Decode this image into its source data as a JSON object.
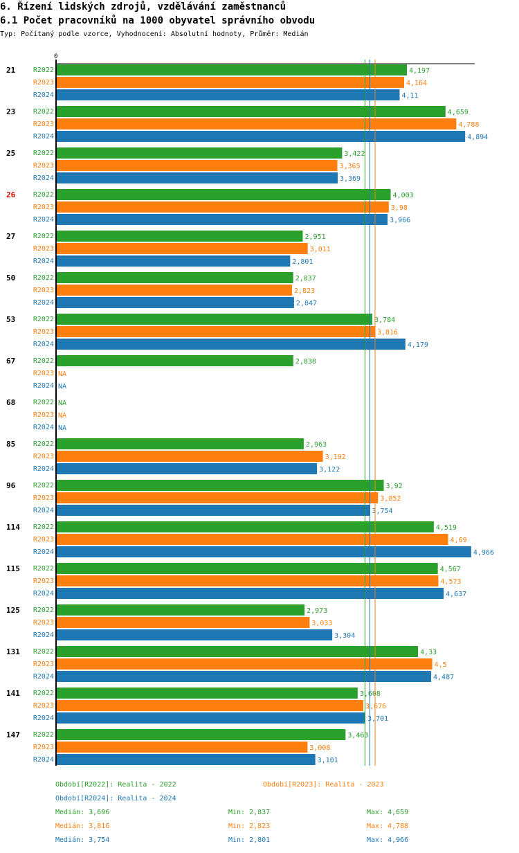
{
  "header": {
    "title": "6. Řízení lidských zdrojů, vzdělávání zaměstnanců",
    "subtitle": "6.1 Počet pracovníků na 1000 obyvatel správního obvodu",
    "meta": "Typ: Počítaný podle vzorce, Vyhodnocení: Absolutní hodnoty, Průměr: Medián"
  },
  "colors": {
    "R2022": "#2ca02c",
    "R2023": "#ff7f0e",
    "R2024": "#1f77b4",
    "highlight": "#dd0000"
  },
  "chart_data": {
    "type": "bar",
    "orientation": "horizontal",
    "title": "6.1 Počet pracovníků na 1000 obyvatel správního obvodu",
    "xlabel": "",
    "ylabel": "",
    "x_tick_labels": [
      "0"
    ],
    "xlim": [
      0,
      5.0
    ],
    "highlighted_category": "26",
    "categories": [
      "21",
      "23",
      "25",
      "26",
      "27",
      "50",
      "53",
      "67",
      "68",
      "85",
      "96",
      "114",
      "115",
      "125",
      "131",
      "141",
      "147"
    ],
    "series": [
      {
        "name": "R2022",
        "values": [
          4.197,
          4.659,
          3.422,
          4.003,
          2.951,
          2.837,
          3.784,
          2.838,
          null,
          2.963,
          3.92,
          4.519,
          4.567,
          2.973,
          4.33,
          3.608,
          3.463
        ],
        "labels": [
          "4,197",
          "4,659",
          "3,422",
          "4,003",
          "2,951",
          "2,837",
          "3,784",
          "2,838",
          "NA",
          "2,963",
          "3,92",
          "4,519",
          "4,567",
          "2,973",
          "4,33",
          "3,608",
          "3,463"
        ]
      },
      {
        "name": "R2023",
        "values": [
          4.164,
          4.788,
          3.365,
          3.98,
          3.011,
          2.823,
          3.816,
          null,
          null,
          3.192,
          3.852,
          4.69,
          4.573,
          3.033,
          4.5,
          3.676,
          3.008
        ],
        "labels": [
          "4,164",
          "4,788",
          "3,365",
          "3,98",
          "3,011",
          "2,823",
          "3,816",
          "NA",
          "NA",
          "3,192",
          "3,852",
          "4,69",
          "4,573",
          "3,033",
          "4,5",
          "3,676",
          "3,008"
        ]
      },
      {
        "name": "R2024",
        "values": [
          4.11,
          4.894,
          3.369,
          3.966,
          2.801,
          2.847,
          4.179,
          null,
          null,
          3.122,
          3.754,
          4.966,
          4.637,
          3.304,
          4.487,
          3.701,
          3.101
        ],
        "labels": [
          "4,11",
          "4,894",
          "3,369",
          "3,966",
          "2,801",
          "2,847",
          "4,179",
          "NA",
          "NA",
          "3,122",
          "3,754",
          "4,966",
          "4,637",
          "3,304",
          "4,487",
          "3,701",
          "3,101"
        ]
      }
    ],
    "median_lines": {
      "R2022": 3.696,
      "R2023": 3.816,
      "R2024": 3.754
    }
  },
  "legend": {
    "periods": [
      "Období[R2022]: Realita - 2022",
      "Období[R2023]: Realita - 2023",
      "Období[R2024]: Realita - 2024"
    ],
    "stats": [
      {
        "median": "Medián: 3,696",
        "min": "Min: 2,837",
        "max": "Max: 4,659"
      },
      {
        "median": "Medián: 3,816",
        "min": "Min: 2,823",
        "max": "Max: 4,788"
      },
      {
        "median": "Medián: 3,754",
        "min": "Min: 2,801",
        "max": "Max: 4,966"
      }
    ]
  }
}
